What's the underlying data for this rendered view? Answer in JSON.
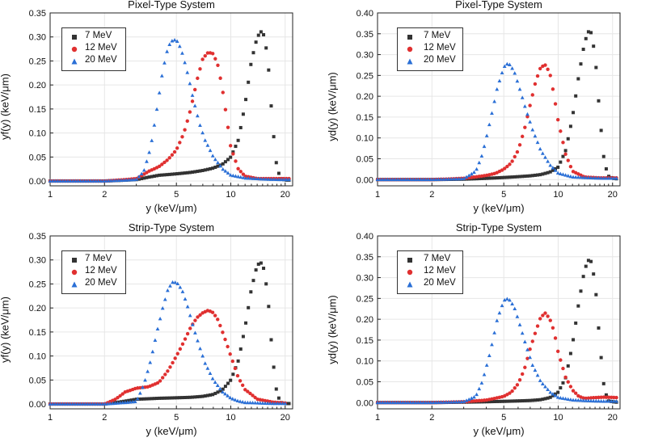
{
  "chart_data": [
    {
      "type": "scatter",
      "title": "Pixel-Type System",
      "xlabel": "y (keV/μm)",
      "ylabel": "yf(y) (keV/μm)",
      "xscale": "log",
      "xlim": [
        1,
        22
      ],
      "ylim": [
        -0.01,
        0.35
      ],
      "xticks": [
        1,
        2,
        5,
        10,
        20
      ],
      "yticks": [
        0.0,
        0.05,
        0.1,
        0.15,
        0.2,
        0.25,
        0.3,
        0.35
      ],
      "ytick_labels": [
        "0.00",
        "0.05",
        "0.10",
        "0.15",
        "0.20",
        "0.25",
        "0.30",
        "0.35"
      ],
      "legend": "top-left",
      "series": [
        {
          "name": "7 MeV",
          "color": "#333333",
          "marker": "square",
          "x": [
            1,
            2,
            3,
            3.5,
            4,
            5,
            6,
            7,
            8,
            9,
            10,
            11,
            12,
            13,
            14,
            15,
            16,
            17,
            18,
            19,
            20,
            21
          ],
          "y": [
            0.0,
            0.0,
            0.003,
            0.008,
            0.012,
            0.015,
            0.018,
            0.022,
            0.027,
            0.035,
            0.05,
            0.085,
            0.16,
            0.25,
            0.3,
            0.315,
            0.26,
            0.12,
            0.025,
            0.005,
            0.002,
            0.002
          ]
        },
        {
          "name": "12 MeV",
          "color": "#e03030",
          "marker": "circle",
          "x": [
            1,
            2,
            3,
            3.5,
            4,
            4.5,
            5,
            5.5,
            6,
            6.5,
            7,
            7.5,
            8,
            8.5,
            9,
            9.5,
            10,
            11,
            12,
            14,
            17,
            21
          ],
          "y": [
            0.0,
            0.0,
            0.005,
            0.02,
            0.03,
            0.045,
            0.065,
            0.1,
            0.15,
            0.21,
            0.255,
            0.268,
            0.265,
            0.24,
            0.19,
            0.13,
            0.07,
            0.025,
            0.01,
            0.005,
            0.005,
            0.005
          ]
        },
        {
          "name": "20 MeV",
          "color": "#2a6fd6",
          "marker": "triangle",
          "x": [
            1,
            2,
            3,
            3.3,
            3.6,
            3.9,
            4.2,
            4.5,
            4.8,
            5.1,
            5.4,
            5.8,
            6.2,
            6.7,
            7.2,
            8,
            9,
            10,
            12,
            15,
            18,
            21
          ],
          "y": [
            0.0,
            0.0,
            0.003,
            0.02,
            0.07,
            0.15,
            0.23,
            0.28,
            0.295,
            0.29,
            0.265,
            0.22,
            0.17,
            0.12,
            0.085,
            0.05,
            0.025,
            0.012,
            0.006,
            0.004,
            0.003,
            0.003
          ]
        }
      ]
    },
    {
      "type": "scatter",
      "title": "Pixel-Type System",
      "xlabel": "y (keV/μm)",
      "ylabel": "yd(y) (keV/μm)",
      "xscale": "log",
      "xlim": [
        1,
        22
      ],
      "ylim": [
        -0.015,
        0.4
      ],
      "xticks": [
        1,
        2,
        5,
        10,
        20
      ],
      "yticks": [
        0.0,
        0.05,
        0.1,
        0.15,
        0.2,
        0.25,
        0.3,
        0.35,
        0.4
      ],
      "ytick_labels": [
        "0.00",
        "0.05",
        "0.10",
        "0.15",
        "0.20",
        "0.25",
        "0.30",
        "0.35",
        "0.40"
      ],
      "legend": "top-left",
      "series": [
        {
          "name": "7 MeV",
          "color": "#333333",
          "marker": "square",
          "x": [
            1,
            2,
            3,
            4,
            5,
            6,
            7,
            8,
            9,
            10,
            11,
            12,
            13,
            14,
            15,
            16,
            17,
            18,
            19,
            20,
            21
          ],
          "y": [
            0.0,
            0.0,
            0.001,
            0.003,
            0.005,
            0.007,
            0.009,
            0.012,
            0.018,
            0.03,
            0.07,
            0.15,
            0.25,
            0.33,
            0.365,
            0.3,
            0.15,
            0.04,
            0.008,
            0.003,
            0.002
          ]
        },
        {
          "name": "12 MeV",
          "color": "#e03030",
          "marker": "circle",
          "x": [
            1,
            2,
            3,
            4,
            4.5,
            5,
            5.5,
            6,
            6.5,
            7,
            7.5,
            8,
            8.5,
            9,
            9.5,
            10,
            11,
            12,
            14,
            17,
            21
          ],
          "y": [
            0.0,
            0.0,
            0.003,
            0.01,
            0.015,
            0.025,
            0.04,
            0.07,
            0.12,
            0.18,
            0.235,
            0.27,
            0.275,
            0.255,
            0.2,
            0.14,
            0.06,
            0.02,
            0.006,
            0.004,
            0.004
          ]
        },
        {
          "name": "20 MeV",
          "color": "#2a6fd6",
          "marker": "triangle",
          "x": [
            1,
            2,
            3,
            3.5,
            3.8,
            4.2,
            4.6,
            5,
            5.3,
            5.7,
            6.1,
            6.6,
            7.2,
            8,
            9,
            10,
            12,
            15,
            18,
            21
          ],
          "y": [
            0.0,
            0.0,
            0.002,
            0.02,
            0.06,
            0.14,
            0.22,
            0.27,
            0.28,
            0.26,
            0.22,
            0.17,
            0.12,
            0.07,
            0.035,
            0.015,
            0.006,
            0.004,
            0.003,
            0.003
          ]
        }
      ]
    },
    {
      "type": "scatter",
      "title": "Strip-Type System",
      "xlabel": "y (keV/μm)",
      "ylabel": "yf(y) (keV/μm)",
      "xscale": "log",
      "xlim": [
        1,
        22
      ],
      "ylim": [
        -0.01,
        0.35
      ],
      "xticks": [
        1,
        2,
        5,
        10,
        20
      ],
      "yticks": [
        0.0,
        0.05,
        0.1,
        0.15,
        0.2,
        0.25,
        0.3,
        0.35
      ],
      "ytick_labels": [
        "0.00",
        "0.05",
        "0.10",
        "0.15",
        "0.20",
        "0.25",
        "0.30",
        "0.35"
      ],
      "legend": "top-left",
      "series": [
        {
          "name": "7 MeV",
          "color": "#333333",
          "marker": "square",
          "x": [
            1,
            2,
            2.5,
            3,
            4,
            5,
            6,
            7,
            8,
            9,
            10,
            11,
            12,
            13,
            14,
            15,
            16,
            17,
            18,
            19,
            20,
            21
          ],
          "y": [
            0.0,
            0.0,
            0.005,
            0.01,
            0.012,
            0.013,
            0.014,
            0.016,
            0.02,
            0.03,
            0.05,
            0.09,
            0.16,
            0.24,
            0.29,
            0.295,
            0.23,
            0.1,
            0.02,
            0.003,
            0.001,
            0.001
          ]
        },
        {
          "name": "12 MeV",
          "color": "#e03030",
          "marker": "circle",
          "x": [
            1,
            2,
            2.3,
            2.6,
            3,
            3.5,
            4,
            4.5,
            5,
            5.5,
            6,
            6.5,
            7,
            7.5,
            8,
            8.5,
            9,
            10,
            11,
            12,
            14,
            17,
            20
          ],
          "y": [
            0.0,
            0.0,
            0.01,
            0.025,
            0.033,
            0.036,
            0.045,
            0.07,
            0.1,
            0.13,
            0.16,
            0.18,
            0.19,
            0.195,
            0.19,
            0.175,
            0.15,
            0.1,
            0.055,
            0.03,
            0.01,
            0.004,
            0.002
          ]
        },
        {
          "name": "20 MeV",
          "color": "#2a6fd6",
          "marker": "triangle",
          "x": [
            1,
            2,
            3,
            3.3,
            3.6,
            3.9,
            4.2,
            4.5,
            4.8,
            5.1,
            5.4,
            5.8,
            6.2,
            6.7,
            7.2,
            8,
            9,
            10,
            11,
            12,
            14,
            17,
            20
          ],
          "y": [
            0.0,
            0.0,
            0.005,
            0.04,
            0.09,
            0.15,
            0.2,
            0.24,
            0.255,
            0.25,
            0.235,
            0.2,
            0.16,
            0.12,
            0.085,
            0.05,
            0.025,
            0.012,
            0.006,
            0.003,
            0.002,
            0.001,
            0.001
          ]
        }
      ]
    },
    {
      "type": "scatter",
      "title": "Strip-Type System",
      "xlabel": "y (keV/μm)",
      "ylabel": "yd(y) (keV/μm)",
      "xscale": "log",
      "xlim": [
        1,
        22
      ],
      "ylim": [
        -0.015,
        0.4
      ],
      "xticks": [
        1,
        2,
        5,
        10,
        20
      ],
      "yticks": [
        0.0,
        0.05,
        0.1,
        0.15,
        0.2,
        0.25,
        0.3,
        0.35,
        0.4
      ],
      "ytick_labels": [
        "0.00",
        "0.05",
        "0.10",
        "0.15",
        "0.20",
        "0.25",
        "0.30",
        "0.35",
        "0.40"
      ],
      "legend": "top-left",
      "series": [
        {
          "name": "7 MeV",
          "color": "#333333",
          "marker": "square",
          "x": [
            1,
            2,
            3,
            4,
            5,
            6,
            7,
            8,
            9,
            10,
            11,
            12,
            13,
            14,
            15,
            16,
            17,
            18,
            19,
            20,
            21
          ],
          "y": [
            0.0,
            0.0,
            0.001,
            0.002,
            0.003,
            0.004,
            0.005,
            0.007,
            0.012,
            0.025,
            0.06,
            0.14,
            0.24,
            0.32,
            0.35,
            0.29,
            0.14,
            0.03,
            0.004,
            0.002,
            0.001
          ]
        },
        {
          "name": "12 MeV",
          "color": "#e03030",
          "marker": "circle",
          "x": [
            1,
            2,
            3,
            4,
            5,
            5.5,
            6,
            6.5,
            7,
            7.5,
            8,
            8.5,
            9,
            9.5,
            10,
            11,
            12,
            13,
            14,
            16,
            18,
            21
          ],
          "y": [
            0.0,
            0.0,
            0.002,
            0.006,
            0.015,
            0.025,
            0.045,
            0.08,
            0.13,
            0.17,
            0.205,
            0.215,
            0.2,
            0.17,
            0.12,
            0.06,
            0.03,
            0.015,
            0.01,
            0.012,
            0.013,
            0.012
          ]
        },
        {
          "name": "20 MeV",
          "color": "#2a6fd6",
          "marker": "triangle",
          "x": [
            1,
            2,
            3,
            3.5,
            3.8,
            4.2,
            4.6,
            5,
            5.3,
            5.7,
            6.1,
            6.6,
            7.2,
            8,
            9,
            10,
            12,
            15,
            18,
            21
          ],
          "y": [
            0.0,
            0.0,
            0.002,
            0.015,
            0.05,
            0.12,
            0.2,
            0.245,
            0.25,
            0.23,
            0.19,
            0.14,
            0.09,
            0.05,
            0.025,
            0.012,
            0.006,
            0.004,
            0.003,
            0.003
          ]
        }
      ]
    }
  ]
}
